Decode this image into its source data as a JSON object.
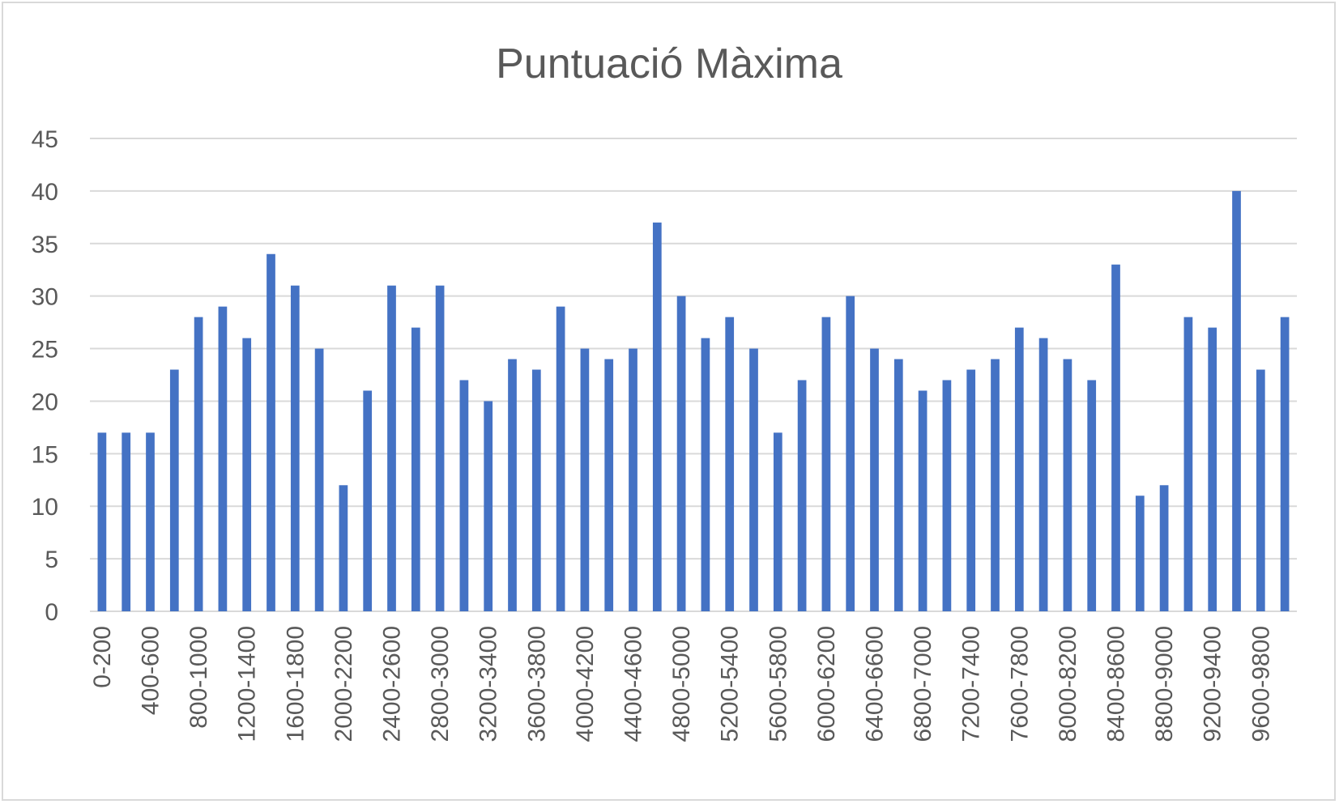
{
  "chart_data": {
    "type": "bar",
    "title": "Puntuació Màxima",
    "xlabel": "",
    "ylabel": "",
    "ylim": [
      0,
      45
    ],
    "yticks": [
      0,
      5,
      10,
      15,
      20,
      25,
      30,
      35,
      40,
      45
    ],
    "grid": true,
    "legend": "none",
    "bar_color": "#4472c4",
    "categories": [
      "0-200",
      "200-400",
      "400-600",
      "600-800",
      "800-1000",
      "1000-1200",
      "1200-1400",
      "1400-1600",
      "1600-1800",
      "1800-2000",
      "2000-2200",
      "2200-2400",
      "2400-2600",
      "2600-2800",
      "2800-3000",
      "3000-3200",
      "3200-3400",
      "3400-3600",
      "3600-3800",
      "3800-4000",
      "4000-4200",
      "4200-4400",
      "4400-4600",
      "4600-4800",
      "4800-5000",
      "5000-5200",
      "5200-5400",
      "5400-5600",
      "5600-5800",
      "5800-6000",
      "6000-6200",
      "6200-6400",
      "6400-6600",
      "6600-6800",
      "6800-7000",
      "7000-7200",
      "7200-7400",
      "7400-7600",
      "7600-7800",
      "7800-8000",
      "8000-8200",
      "8200-8400",
      "8400-8600",
      "8600-8800",
      "8800-9000",
      "9000-9200",
      "9200-9400",
      "9400-9600",
      "9600-9800",
      "9800-10000"
    ],
    "tick_labels": [
      "0-200",
      "400-600",
      "800-1000",
      "1200-1400",
      "1600-1800",
      "2000-2200",
      "2400-2600",
      "2800-3000",
      "3200-3400",
      "3600-3800",
      "4000-4200",
      "4400-4600",
      "4800-5000",
      "5200-5400",
      "5600-5800",
      "6000-6200",
      "6400-6600",
      "6800-7000",
      "7200-7400",
      "7600-7800",
      "8000-8200",
      "8400-8600",
      "8800-9000",
      "9200-9400",
      "9600-9800"
    ],
    "values": [
      17,
      17,
      17,
      23,
      28,
      29,
      26,
      34,
      31,
      25,
      12,
      21,
      31,
      27,
      31,
      22,
      20,
      24,
      23,
      29,
      25,
      24,
      25,
      37,
      30,
      26,
      28,
      25,
      17,
      22,
      28,
      30,
      25,
      24,
      21,
      22,
      23,
      24,
      27,
      26,
      24,
      22,
      33,
      11,
      12,
      28,
      27,
      40,
      23,
      28
    ]
  }
}
